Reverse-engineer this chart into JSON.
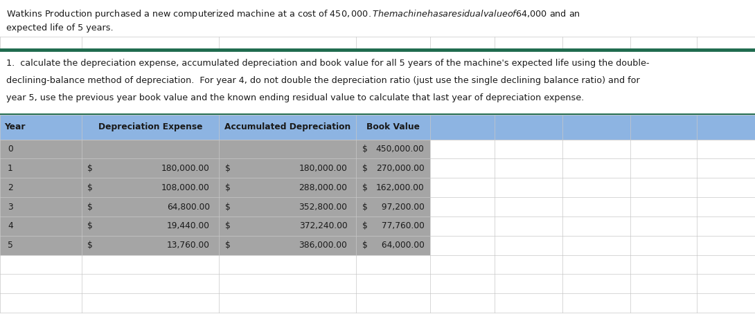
{
  "intro_text_line1": "Watkins Production purchased a new computerized machine at a cost of $450,000.  The machine has a residual value of $64,000 and an",
  "intro_text_line2": "expected life of 5 years.",
  "question_text_line1": "1.  calculate the depreciation expense, accumulated depreciation and book value for all 5 years of the machine's expected life using the double-",
  "question_text_line2": "declining-balance method of depreciation.  For year 4, do not double the depreciation ratio (just use the single declining balance ratio) and for",
  "question_text_line3": "year 5, use the previous year book value and the known ending residual value to calculate that last year of depreciation expense.",
  "col_headers": [
    "Year",
    "Depreciation Expense",
    "Accumulated Depreciation",
    "Book Value"
  ],
  "rows": [
    {
      "year": "0",
      "dep_exp_dollar": "",
      "dep_exp_val": "",
      "acc_dep_dollar": "",
      "acc_dep_val": "",
      "book_val_pre": "$",
      "book_val_num": "450,000.00"
    },
    {
      "year": "1",
      "dep_exp_dollar": "$",
      "dep_exp_val": "180,000.00",
      "acc_dep_dollar": "$",
      "acc_dep_val": "180,000.00",
      "book_val_pre": "$",
      "book_val_num": "270,000.00"
    },
    {
      "year": "2",
      "dep_exp_dollar": "$",
      "dep_exp_val": "108,000.00",
      "acc_dep_dollar": "$",
      "acc_dep_val": "288,000.00",
      "book_val_pre": "$",
      "book_val_num": "162,000.00"
    },
    {
      "year": "3",
      "dep_exp_dollar": "$",
      "dep_exp_val": "64,800.00",
      "acc_dep_dollar": "$",
      "acc_dep_val": "352,800.00",
      "book_val_pre": "$",
      "book_val_num": " 97,200.00"
    },
    {
      "year": "4",
      "dep_exp_dollar": "$",
      "dep_exp_val": "19,440.00",
      "acc_dep_dollar": "$",
      "acc_dep_val": "372,240.00",
      "book_val_pre": "$",
      "book_val_num": " 77,760.00"
    },
    {
      "year": "5",
      "dep_exp_dollar": "$",
      "dep_exp_val": "13,760.00",
      "acc_dep_dollar": "$",
      "acc_dep_val": "386,000.00",
      "book_val_pre": "$",
      "book_val_num": " 64,000.00"
    }
  ],
  "header_bg": "#8db4e2",
  "row_bg": "#a5a5a5",
  "text_color": "#1a1a1a",
  "grid_color_major": "#1f6b4e",
  "grid_color_minor": "#c8c8c8",
  "bg_color": "#ffffff",
  "intro_font_size": 9.2,
  "question_font_size": 9.2,
  "table_font_size": 8.8
}
